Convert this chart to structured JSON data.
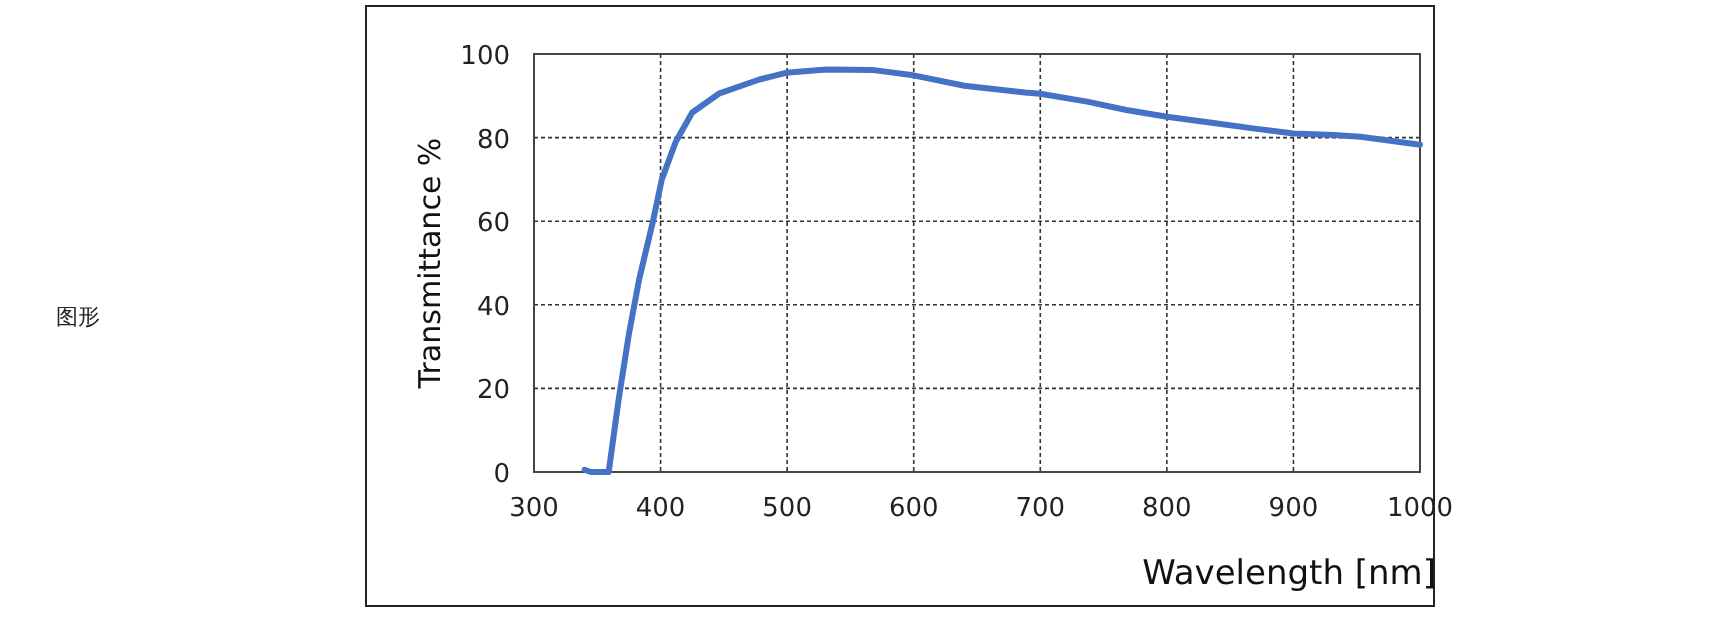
{
  "chart_data": {
    "type": "line",
    "xlabel": "Wavelength [nm]",
    "ylabel": "Transmittance %",
    "annotations": [
      "图形"
    ],
    "x": [
      340,
      345,
      359,
      367,
      375,
      383,
      394,
      401,
      412,
      425,
      446,
      478,
      499,
      531,
      567,
      598,
      640,
      688,
      700,
      737,
      768,
      800,
      837,
      868,
      900,
      932,
      953,
      1000
    ],
    "series": [
      {
        "color": "#4472c4",
        "values": [
          0.5,
          0,
          0,
          17.6,
          33,
          46,
          60,
          70,
          79,
          86,
          90.5,
          93.9,
          95.5,
          96.3,
          96.2,
          95,
          92.4,
          90.8,
          90.5,
          88.6,
          86.6,
          85,
          83.5,
          82.2,
          81,
          80.6,
          80.2,
          78.3
        ]
      }
    ],
    "xlim": [
      300,
      1000
    ],
    "ylim": [
      0,
      100
    ],
    "xticks": [
      300,
      400,
      500,
      600,
      700,
      800,
      900,
      1000
    ],
    "yticks": [
      0,
      20,
      40,
      60,
      80,
      100
    ],
    "grid": true,
    "line_style": "solid"
  }
}
